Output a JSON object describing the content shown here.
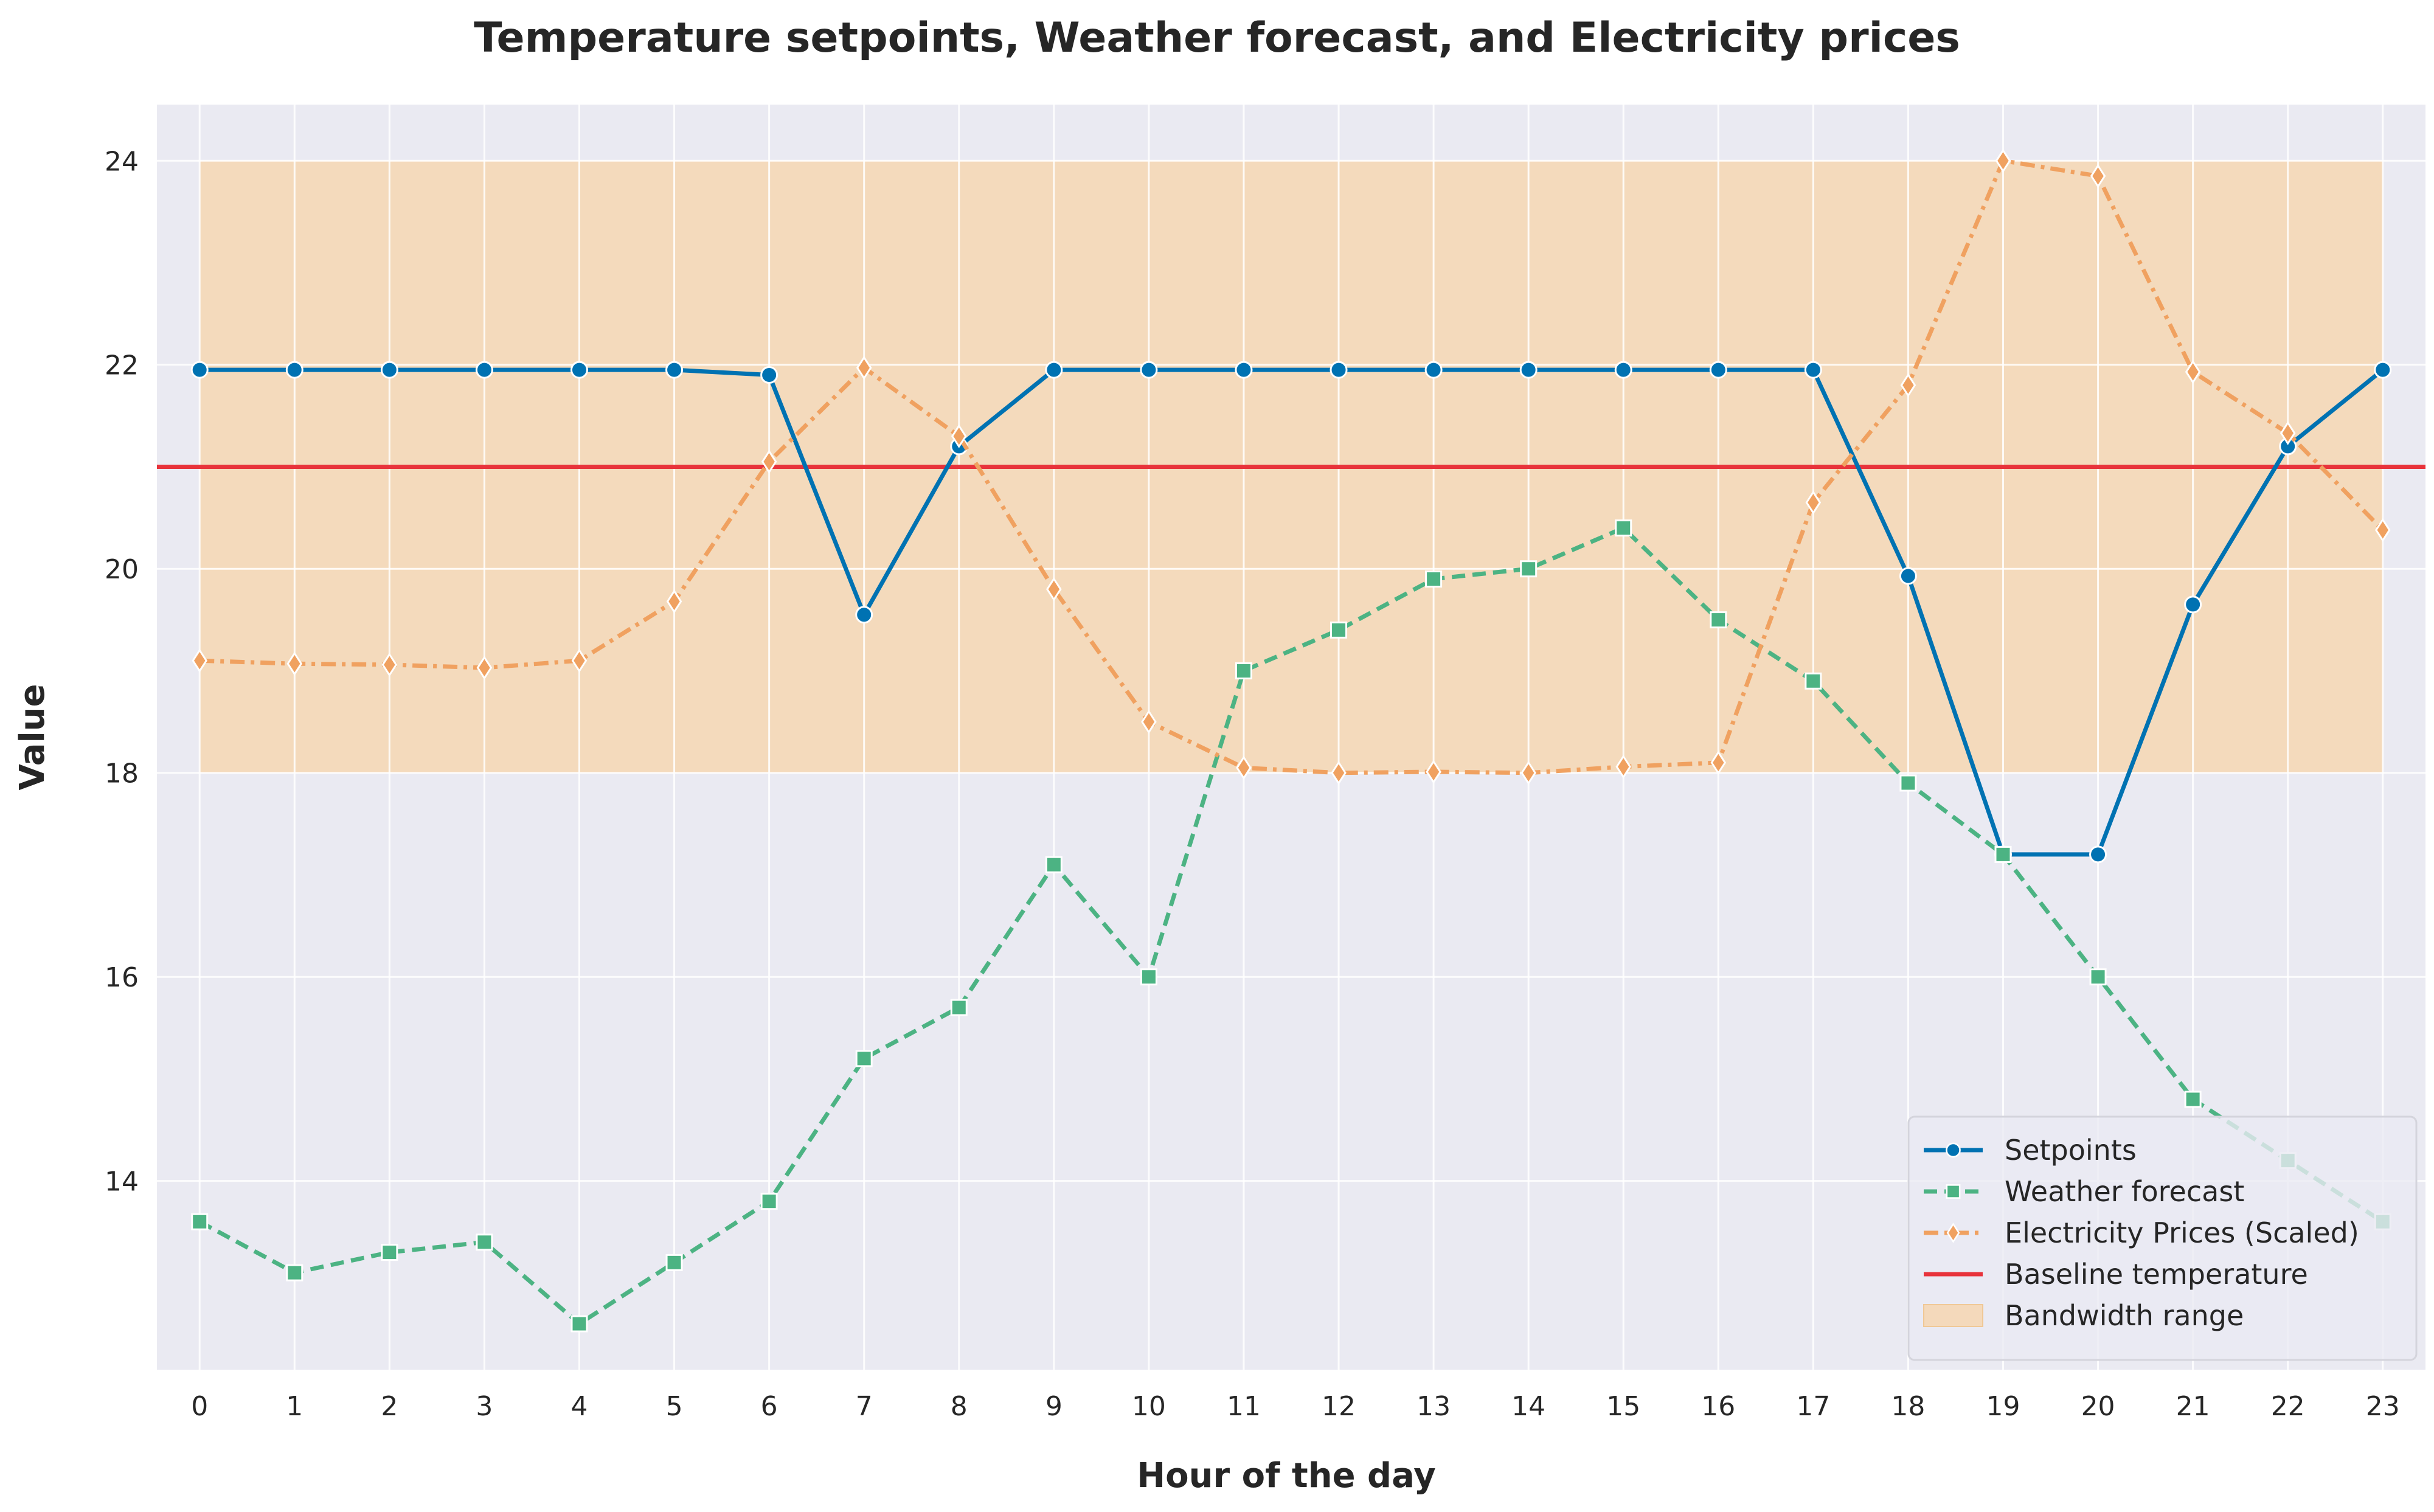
{
  "chart_data": {
    "type": "line",
    "title": "Temperature setpoints, Weather forecast, and Electricity prices",
    "xlabel": "Hour of the day",
    "ylabel": "Value",
    "x": [
      0,
      1,
      2,
      3,
      4,
      5,
      6,
      7,
      8,
      9,
      10,
      11,
      12,
      13,
      14,
      15,
      16,
      17,
      18,
      19,
      20,
      21,
      22,
      23
    ],
    "x_ticks": [
      "0",
      "1",
      "2",
      "3",
      "4",
      "5",
      "6",
      "7",
      "8",
      "9",
      "10",
      "11",
      "12",
      "13",
      "14",
      "15",
      "16",
      "17",
      "18",
      "19",
      "20",
      "21",
      "22",
      "23"
    ],
    "y_ticks": [
      "14",
      "16",
      "18",
      "20",
      "22",
      "24"
    ],
    "y_tick_values": [
      14,
      16,
      18,
      20,
      22,
      24
    ],
    "xlim": [
      -0.45,
      23.45
    ],
    "ylim": [
      12.15,
      24.55
    ],
    "grid": true,
    "legend_position": "bottom-right",
    "series": [
      {
        "name": "Setpoints",
        "color": "#0072b2",
        "marker": "circle",
        "linestyle": "solid",
        "values": [
          21.95,
          21.95,
          21.95,
          21.95,
          21.95,
          21.95,
          21.9,
          19.55,
          21.2,
          21.95,
          21.95,
          21.95,
          21.95,
          21.95,
          21.95,
          21.95,
          21.95,
          21.95,
          19.93,
          17.2,
          17.2,
          19.65,
          21.2,
          21.95
        ]
      },
      {
        "name": "Weather forecast",
        "color": "#4cb383",
        "marker": "square",
        "linestyle": "dashed",
        "values": [
          13.6,
          13.1,
          13.3,
          13.4,
          12.6,
          13.2,
          13.8,
          15.2,
          15.7,
          17.1,
          16.0,
          19.0,
          19.4,
          19.9,
          20.0,
          20.4,
          19.5,
          18.9,
          17.9,
          17.2,
          16.0,
          14.8,
          14.2,
          13.6
        ]
      },
      {
        "name": "Electricity Prices (Scaled)",
        "color": "#f0a160",
        "marker": "diamond",
        "linestyle": "dashdot",
        "values": [
          19.1,
          19.07,
          19.06,
          19.03,
          19.1,
          19.68,
          21.05,
          21.97,
          21.3,
          19.8,
          18.5,
          18.05,
          18.0,
          18.01,
          18.0,
          18.06,
          18.1,
          20.65,
          21.8,
          24.0,
          23.85,
          21.93,
          21.33,
          20.38
        ]
      }
    ],
    "baseline": {
      "name": "Baseline temperature",
      "value": 21.0,
      "color": "#e8333b"
    },
    "band": {
      "name": "Bandwidth range",
      "low": 18.0,
      "high": 24.0,
      "x_range": [
        0,
        23
      ],
      "color": "#f6d5ad"
    }
  },
  "colors": {
    "axes_background": "#eaeaf2",
    "grid": "#ffffff",
    "text": "#262626"
  }
}
